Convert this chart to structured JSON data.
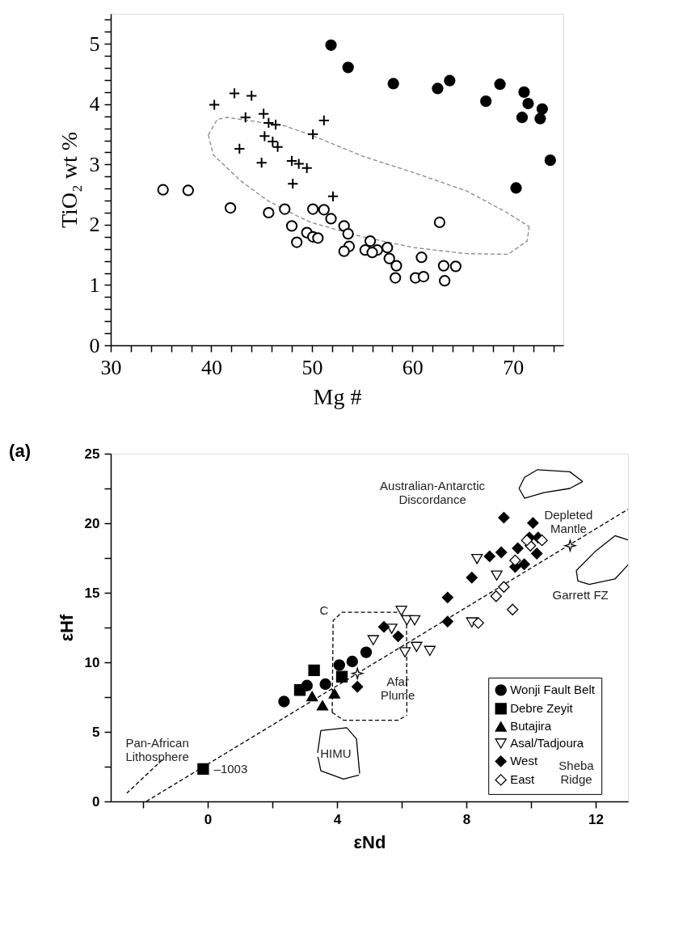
{
  "chart_data": [
    {
      "type": "scatter",
      "xlabel": "Mg #",
      "ylabel": "TiO₂ wt %",
      "xlim": [
        30,
        75
      ],
      "ylim": [
        0,
        5.5
      ],
      "grid": false,
      "xticks": [
        30,
        {
          "value": 32,
          "label": null
        },
        {
          "value": 34,
          "label": null
        },
        {
          "value": 36,
          "label": null
        },
        {
          "value": 38,
          "label": null
        },
        40,
        {
          "value": 42,
          "label": null
        },
        {
          "value": 44,
          "label": null
        },
        {
          "value": 46,
          "label": null
        },
        {
          "value": 48,
          "label": null
        },
        50,
        {
          "value": 52,
          "label": null
        },
        {
          "value": 54,
          "label": null
        },
        {
          "value": 56,
          "label": null
        },
        {
          "value": 58,
          "label": null
        },
        60,
        {
          "value": 62,
          "label": null
        },
        {
          "value": 64,
          "label": null
        },
        {
          "value": 66,
          "label": null
        },
        {
          "value": 68,
          "label": null
        },
        70,
        {
          "value": 72,
          "label": null
        },
        {
          "value": 74,
          "label": null
        }
      ],
      "yticks": [
        0,
        {
          "value": 0.2,
          "label": null
        },
        {
          "value": 0.4,
          "label": null
        },
        {
          "value": 0.6,
          "label": null
        },
        {
          "value": 0.8,
          "label": null
        },
        1,
        {
          "value": 1.2,
          "label": null
        },
        {
          "value": 1.4,
          "label": null
        },
        {
          "value": 1.6,
          "label": null
        },
        {
          "value": 1.8,
          "label": null
        },
        2,
        {
          "value": 2.2,
          "label": null
        },
        {
          "value": 2.4,
          "label": null
        },
        {
          "value": 2.6,
          "label": null
        },
        {
          "value": 2.8,
          "label": null
        },
        3,
        {
          "value": 3.2,
          "label": null
        },
        {
          "value": 3.4,
          "label": null
        },
        {
          "value": 3.6,
          "label": null
        },
        {
          "value": 3.8,
          "label": null
        },
        4,
        {
          "value": 4.2,
          "label": null
        },
        {
          "value": 4.4,
          "label": null
        },
        {
          "value": 4.6,
          "label": null
        },
        {
          "value": 4.8,
          "label": null
        },
        5,
        {
          "value": 5.2,
          "label": null
        },
        {
          "value": 5.4,
          "label": null
        }
      ],
      "series": [
        {
          "marker": "circle",
          "color": "#000000",
          "x": [
            51.9,
            53.6,
            58.1,
            62.5,
            63.7,
            67.3,
            68.7,
            71.1,
            71.5,
            70.9,
            72.9,
            72.7,
            73.7,
            70.3
          ],
          "values": [
            4.98,
            4.61,
            4.34,
            4.26,
            4.39,
            4.05,
            4.33,
            4.2,
            4.01,
            3.78,
            3.92,
            3.76,
            3.07,
            2.61
          ]
        },
        {
          "marker": "cross",
          "color": "#000000",
          "x": [
            40.3,
            42.3,
            44.0,
            43.4,
            45.2,
            45.7,
            46.4,
            45.3,
            46.1,
            46.6,
            42.8,
            45.0,
            48.0,
            48.7,
            49.5,
            48.1,
            51.2,
            50.1,
            52.1
          ],
          "values": [
            3.99,
            4.18,
            4.14,
            3.78,
            3.84,
            3.69,
            3.66,
            3.47,
            3.38,
            3.29,
            3.26,
            3.03,
            3.06,
            3.01,
            2.94,
            2.68,
            3.73,
            3.5,
            2.47
          ]
        },
        {
          "marker": "circle-open",
          "color": "#000000",
          "x": [
            35.2,
            37.7,
            41.9,
            45.7,
            47.3,
            48.0,
            48.5,
            49.5,
            50.1,
            50.1,
            51.2,
            51.9,
            50.6,
            53.2,
            53.6,
            53.7,
            53.2,
            55.8,
            55.3,
            56.5,
            56.0,
            57.5,
            57.7,
            58.4,
            58.3,
            60.3,
            61.1,
            60.9,
            63.1,
            64.3,
            63.2,
            62.7
          ],
          "values": [
            2.58,
            2.57,
            2.28,
            2.2,
            2.26,
            1.98,
            1.71,
            1.87,
            2.26,
            1.8,
            2.25,
            2.1,
            1.78,
            1.98,
            1.85,
            1.64,
            1.56,
            1.73,
            1.58,
            1.58,
            1.54,
            1.62,
            1.44,
            1.32,
            1.12,
            1.12,
            1.14,
            1.46,
            1.32,
            1.31,
            1.07,
            2.04
          ]
        },
        {
          "type": "line",
          "line_style": "dashed",
          "color": "#888888",
          "x": [
            39.7,
            40.6,
            41.6,
            47.3,
            49.9,
            55.0,
            60.2,
            65.4,
            69.3,
            71.6
          ],
          "values": [
            3.49,
            3.75,
            3.78,
            3.64,
            3.49,
            3.14,
            2.86,
            2.56,
            2.21,
            1.97
          ]
        },
        {
          "type": "line",
          "line_style": "dashed",
          "color": "#888888",
          "x": [
            39.7,
            40.2,
            42.9,
            45.7,
            48.6,
            49.9,
            55.0,
            60.2,
            65.4,
            69.5,
            71.4,
            71.6
          ],
          "values": [
            3.49,
            3.16,
            2.73,
            2.39,
            2.14,
            2.04,
            1.8,
            1.62,
            1.52,
            1.51,
            1.73,
            1.97
          ]
        }
      ]
    },
    {
      "type": "scatter",
      "title": "(a)",
      "xlabel": "εNd",
      "ylabel": "εHf",
      "xlim": [
        -3,
        13
      ],
      "ylim": [
        0,
        25
      ],
      "legend": "bottom right",
      "grid": false,
      "xticks": [
        {
          "value": -2,
          "label": null
        },
        0,
        {
          "value": 2,
          "label": null
        },
        4,
        {
          "value": 6,
          "label": null
        },
        8,
        {
          "value": 10,
          "label": null
        },
        12
      ],
      "yticks": [
        0,
        {
          "value": 2.5,
          "label": null
        },
        5,
        {
          "value": 7.5,
          "label": null
        },
        10,
        {
          "value": 12.5,
          "label": null
        },
        15,
        {
          "value": 17.5,
          "label": null
        },
        20,
        {
          "value": 22.5,
          "label": null
        },
        25
      ],
      "series": [
        {
          "name": "Wonji Fault Belt",
          "marker": "circle",
          "color": "#000000",
          "x": [
            2.36,
            3.07,
            3.64,
            4.07,
            4.47,
            4.9
          ],
          "values": [
            7.18,
            8.33,
            8.43,
            9.8,
            10.06,
            10.72
          ]
        },
        {
          "name": "Debre Zeyit",
          "marker": "square",
          "color": "#000000",
          "x": [
            3.29,
            2.85,
            4.15,
            -0.14
          ],
          "values": [
            9.43,
            8.01,
            8.97,
            2.33
          ]
        },
        {
          "name": "Butajira",
          "marker": "triangle",
          "color": "#000000",
          "x": [
            3.23,
            3.55,
            3.92
          ],
          "values": [
            7.56,
            6.9,
            7.76
          ]
        },
        {
          "name": "Asal/Tadjoura",
          "marker": "triangle-down-open",
          "color": "#000000",
          "x": [
            8.33,
            8.94,
            5.99,
            6.16,
            6.4,
            5.69,
            5.12,
            6.1,
            6.46,
            6.87,
            8.17
          ],
          "values": [
            17.43,
            16.24,
            13.7,
            13.02,
            13.02,
            12.41,
            11.59,
            10.72,
            11.11,
            10.82,
            12.87
          ]
        },
        {
          "name": "West",
          "marker": "diamond",
          "color": "#000000",
          "x": [
            9.16,
            10.06,
            8.72,
            9.08,
            9.59,
            9.95,
            10.22,
            10.18,
            9.51,
            9.79,
            8.17,
            7.42,
            7.42,
            5.45,
            5.89,
            4.63
          ],
          "values": [
            20.4,
            20.02,
            17.62,
            17.91,
            18.2,
            18.97,
            18.97,
            17.82,
            16.86,
            17.05,
            16.09,
            14.66,
            12.93,
            12.55,
            11.87,
            8.24
          ]
        },
        {
          "name": "East",
          "marker": "diamond-open",
          "color": "#000000",
          "x": [
            9.16,
            8.92,
            9.43,
            8.37,
            9.51,
            9.98,
            10.34,
            9.87
          ],
          "values": [
            15.42,
            14.75,
            13.79,
            12.83,
            17.33,
            18.39,
            18.77,
            18.77
          ]
        },
        {
          "marker": "star-open",
          "color": "#000000",
          "x": [
            4.63,
            11.21
          ],
          "values": [
            9.2,
            18.39
          ]
        },
        {
          "type": "line",
          "line_style": "dashed",
          "color": "#000000",
          "x": [
            -1.9,
            13
          ],
          "values": [
            0,
            21
          ]
        },
        {
          "type": "line",
          "line_style": "dashed",
          "color": "#000000",
          "x": [
            -1.4,
            -2.5
          ],
          "values": [
            3.0,
            0.6
          ]
        },
        {
          "type": "line",
          "line_style": "dashed",
          "color": "#000000",
          "x": [
            3.85,
            3.88,
            4.15,
            5.95,
            6.15
          ],
          "values": [
            6.4,
            13.0,
            13.6,
            13.6,
            13.2
          ]
        },
        {
          "type": "line",
          "line_style": "dashed",
          "color": "#000000",
          "x": [
            6.15,
            6.16
          ],
          "values": [
            13.2,
            6.2
          ]
        },
        {
          "type": "line",
          "line_style": "dashed",
          "color": "#000000",
          "x": [
            3.85,
            4.2,
            5.9,
            6.16
          ],
          "values": [
            6.4,
            5.84,
            5.84,
            6.2
          ]
        },
        {
          "type": "line",
          "line_style": "solid",
          "color": "#000000",
          "x": [
            3.4,
            3.5,
            4.3,
            4.6,
            4.7
          ],
          "values": [
            3.5,
            5.1,
            5.3,
            4.5,
            2.0
          ]
        },
        {
          "type": "line",
          "line_style": "solid",
          "color": "#000000",
          "x": [
            3.41,
            3.5,
            4.2,
            4.68
          ],
          "values": [
            3.2,
            2.2,
            1.6,
            1.9
          ]
        },
        {
          "type": "line",
          "line_style": "solid",
          "color": "#000000",
          "x": [
            9.63,
            9.8,
            10.2,
            11.2,
            11.6
          ],
          "values": [
            22.5,
            23.3,
            23.85,
            23.7,
            23.0
          ]
        },
        {
          "type": "line",
          "line_style": "solid",
          "color": "#000000",
          "x": [
            9.63,
            9.8,
            10.4,
            11.2,
            11.6
          ],
          "values": [
            22.5,
            21.8,
            22.2,
            22.5,
            23.0
          ]
        },
        {
          "type": "line",
          "line_style": "solid",
          "color": "#000000",
          "x": [
            11.4,
            12.0,
            12.6,
            13.0
          ],
          "values": [
            16.6,
            18.0,
            19.1,
            18.8
          ]
        },
        {
          "type": "line",
          "line_style": "solid",
          "color": "#000000",
          "x": [
            11.4,
            11.45,
            11.8,
            12.6,
            13.0
          ],
          "values": [
            16.6,
            15.85,
            15.6,
            16.0,
            17.0
          ]
        }
      ],
      "annotations": [
        "Australian-Antarctic\nDiscordance",
        {
          "text": "Depleted\nMantle",
          "x": 11.21,
          "y": 18.39
        },
        "Garrett FZ",
        "C",
        {
          "text": "Afar\nPlume",
          "x": 4.63,
          "y": 9.2
        },
        "HIMU",
        "Pan-African\nLithosphere",
        {
          "text": "–1003",
          "x": -0.14,
          "y": 2.33
        },
        "Sheba\nRidge"
      ]
    }
  ]
}
